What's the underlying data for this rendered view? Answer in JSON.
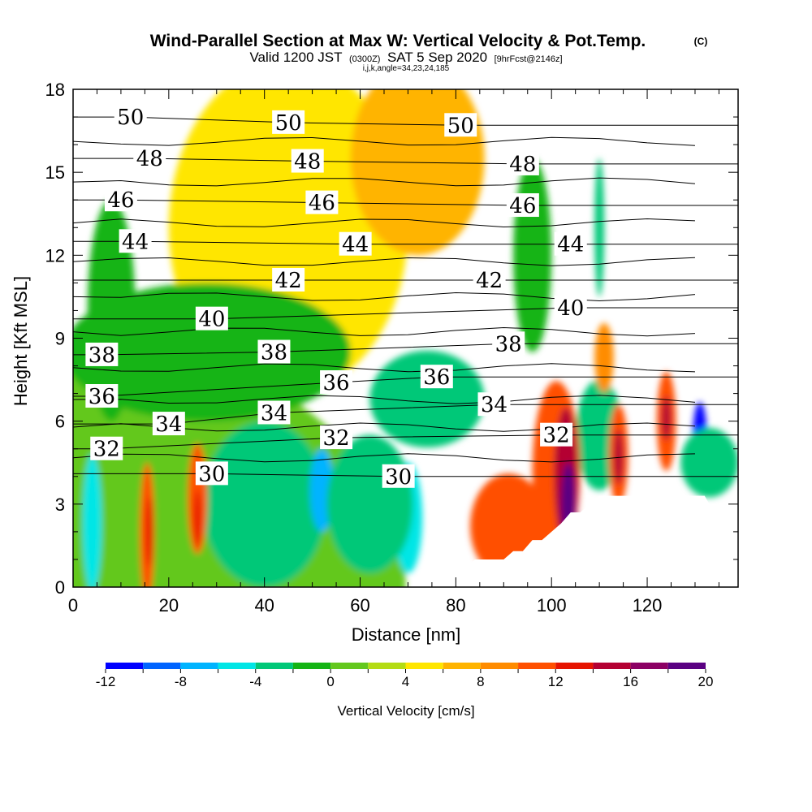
{
  "title": "Wind-Parallel Section at Max W: Vertical Velocity & Pot.Temp.",
  "title_mark": "(C)",
  "subtitle": {
    "valid": "Valid 1200 JST",
    "utc": "(0300Z)",
    "date": "SAT 5 Sep 2020",
    "fcst": "[9hrFcst@2146z]",
    "indices": "i,j,k,angle=34,23,24,185"
  },
  "chart_data": {
    "type": "heatmap",
    "title": "Wind-Parallel Section at Max W: Vertical Velocity & Pot.Temp.",
    "xlabel": "Distance [nm]",
    "ylabel": "Height [Kft MSL]",
    "xlim": [
      0,
      139
    ],
    "ylim": [
      0,
      18
    ],
    "x_ticks": [
      "0",
      "20",
      "40",
      "60",
      "80",
      "100",
      "120"
    ],
    "x_tick_values": [
      0,
      20,
      40,
      60,
      80,
      100,
      120
    ],
    "y_ticks": [
      "0",
      "3",
      "6",
      "9",
      "12",
      "15",
      "18"
    ],
    "y_tick_values": [
      0,
      3,
      6,
      9,
      12,
      15,
      18
    ],
    "colorbar": {
      "label": "Vertical Velocity [cm/s]",
      "levels": [
        -12,
        -10,
        -8,
        -6,
        -4,
        -2,
        0,
        2,
        4,
        6,
        8,
        10,
        12,
        14,
        16,
        18,
        20
      ],
      "tick_labels": [
        "-12",
        "-8",
        "-4",
        "0",
        "4",
        "8",
        "12",
        "16",
        "20"
      ],
      "tick_values": [
        -12,
        -8,
        -4,
        0,
        4,
        8,
        12,
        16,
        20
      ],
      "colors": [
        "#0000ff",
        "#0064ff",
        "#00b4ff",
        "#00e6e6",
        "#00c878",
        "#14b414",
        "#64c81e",
        "#b4dc14",
        "#ffe600",
        "#ffb400",
        "#ff8c00",
        "#ff5000",
        "#e61400",
        "#b40032",
        "#8c0064",
        "#5a0082"
      ]
    },
    "features": [
      {
        "x": 0,
        "y": 0,
        "w": 139,
        "h": 18,
        "w_value": 1
      },
      {
        "x": 45,
        "y": 13,
        "w": 50,
        "h": 12,
        "w_value": 5
      },
      {
        "x": 72,
        "y": 15.5,
        "w": 28,
        "h": 7,
        "w_value": 6
      },
      {
        "x": 28,
        "y": 8.5,
        "w": 60,
        "h": 5,
        "w_value": -1
      },
      {
        "x": 8,
        "y": 10,
        "w": 10,
        "h": 8,
        "w_value": -0.5
      },
      {
        "x": 96,
        "y": 12,
        "w": 8,
        "h": 7,
        "w_value": -1
      },
      {
        "x": 110,
        "y": 13,
        "w": 2,
        "h": 5,
        "w_value": -4
      },
      {
        "x": 74,
        "y": 6.8,
        "w": 24,
        "h": 3.5,
        "w_value": -3
      },
      {
        "x": 4,
        "y": 2.3,
        "w": 4,
        "h": 5,
        "w_value": -5
      },
      {
        "x": 44,
        "y": 3.6,
        "w": 9,
        "h": 4,
        "w_value": -6
      },
      {
        "x": 40,
        "y": 3,
        "w": 26,
        "h": 6,
        "w_value": -4
      },
      {
        "x": 52,
        "y": 3.5,
        "w": 5,
        "h": 3,
        "w_value": -7
      },
      {
        "x": 70,
        "y": 2.5,
        "w": 6,
        "h": 4,
        "w_value": -6
      },
      {
        "x": 62,
        "y": 3,
        "w": 18,
        "h": 5,
        "w_value": -4
      },
      {
        "x": 131,
        "y": 5.3,
        "w": 3,
        "h": 2.8,
        "w_value": -11
      },
      {
        "x": 133,
        "y": 4.5,
        "w": 12,
        "h": 2.5,
        "w_value": -4
      },
      {
        "x": 110,
        "y": 5.5,
        "w": 10,
        "h": 4,
        "w_value": -4
      },
      {
        "x": 15.5,
        "y": 2,
        "w": 3,
        "h": 5,
        "w_value": 10
      },
      {
        "x": 16,
        "y": 2,
        "w": 1.5,
        "h": 2.5,
        "w_value": 12
      },
      {
        "x": 26,
        "y": 3.2,
        "w": 4,
        "h": 4,
        "w_value": 10
      },
      {
        "x": 26,
        "y": 2.5,
        "w": 1.5,
        "h": 2,
        "w_value": 13
      },
      {
        "x": 111,
        "y": 8.3,
        "w": 4,
        "h": 2.5,
        "w_value": 9
      },
      {
        "x": 91,
        "y": 2.2,
        "w": 16,
        "h": 3.8,
        "w_value": 11
      },
      {
        "x": 101,
        "y": 4.2,
        "w": 10,
        "h": 6.5,
        "w_value": 10
      },
      {
        "x": 103,
        "y": 4,
        "w": 5,
        "h": 5,
        "w_value": 14
      },
      {
        "x": 103.5,
        "y": 3,
        "w": 3,
        "h": 3,
        "w_value": 18
      },
      {
        "x": 103.5,
        "y": 2.8,
        "w": 1.5,
        "h": 1.3,
        "w_value": 20
      },
      {
        "x": 114,
        "y": 4.8,
        "w": 4,
        "h": 3.6,
        "w_value": 11
      },
      {
        "x": 114,
        "y": 4.7,
        "w": 2,
        "h": 2,
        "w_value": 14
      },
      {
        "x": 124,
        "y": 6,
        "w": 4,
        "h": 3.6,
        "w_value": 10
      },
      {
        "x": 124,
        "y": 6.1,
        "w": 2,
        "h": 1.6,
        "w_value": 15
      }
    ],
    "isentrope_labels": [
      {
        "value": "50",
        "x": 12,
        "y": 17
      },
      {
        "value": "50",
        "x": 45,
        "y": 16.8
      },
      {
        "value": "50",
        "x": 81,
        "y": 16.7
      },
      {
        "value": "48",
        "x": 16,
        "y": 15.5
      },
      {
        "value": "48",
        "x": 49,
        "y": 15.4
      },
      {
        "value": "48",
        "x": 94,
        "y": 15.3
      },
      {
        "value": "46",
        "x": 10,
        "y": 14
      },
      {
        "value": "46",
        "x": 52,
        "y": 13.9
      },
      {
        "value": "46",
        "x": 94,
        "y": 13.8
      },
      {
        "value": "44",
        "x": 13,
        "y": 12.5
      },
      {
        "value": "44",
        "x": 59,
        "y": 12.4
      },
      {
        "value": "44",
        "x": 104,
        "y": 12.4
      },
      {
        "value": "42",
        "x": 45,
        "y": 11.1
      },
      {
        "value": "42",
        "x": 87,
        "y": 11.1
      },
      {
        "value": "40",
        "x": 29,
        "y": 9.7
      },
      {
        "value": "40",
        "x": 104,
        "y": 10.1
      },
      {
        "value": "38",
        "x": 6,
        "y": 8.4
      },
      {
        "value": "38",
        "x": 42,
        "y": 8.5
      },
      {
        "value": "38",
        "x": 91,
        "y": 8.8
      },
      {
        "value": "36",
        "x": 6,
        "y": 6.9
      },
      {
        "value": "36",
        "x": 55,
        "y": 7.4
      },
      {
        "value": "36",
        "x": 76,
        "y": 7.6
      },
      {
        "value": "34",
        "x": 20,
        "y": 5.9
      },
      {
        "value": "34",
        "x": 42,
        "y": 6.3
      },
      {
        "value": "34",
        "x": 88,
        "y": 6.6
      },
      {
        "value": "32",
        "x": 7,
        "y": 5
      },
      {
        "value": "32",
        "x": 55,
        "y": 5.4
      },
      {
        "value": "32",
        "x": 101,
        "y": 5.5
      },
      {
        "value": "30",
        "x": 29,
        "y": 4.1
      },
      {
        "value": "30",
        "x": 68,
        "y": 4
      }
    ],
    "terrain": [
      [
        80,
        0.3
      ],
      [
        82,
        0.7
      ],
      [
        84,
        1
      ],
      [
        86,
        1
      ],
      [
        88,
        1
      ],
      [
        90,
        1
      ],
      [
        92,
        1.3
      ],
      [
        94,
        1.3
      ],
      [
        96,
        1.7
      ],
      [
        98,
        1.7
      ],
      [
        100,
        2
      ],
      [
        102,
        2.3
      ],
      [
        104,
        2.7
      ],
      [
        106,
        2.7
      ],
      [
        108,
        3
      ],
      [
        110,
        3.3
      ],
      [
        114,
        3.3
      ],
      [
        132,
        3.3
      ],
      [
        133,
        3
      ],
      [
        139,
        3
      ]
    ]
  },
  "colors": {
    "contour": "#000000",
    "terrain": "#ffffff",
    "plot_border": "#000000"
  }
}
